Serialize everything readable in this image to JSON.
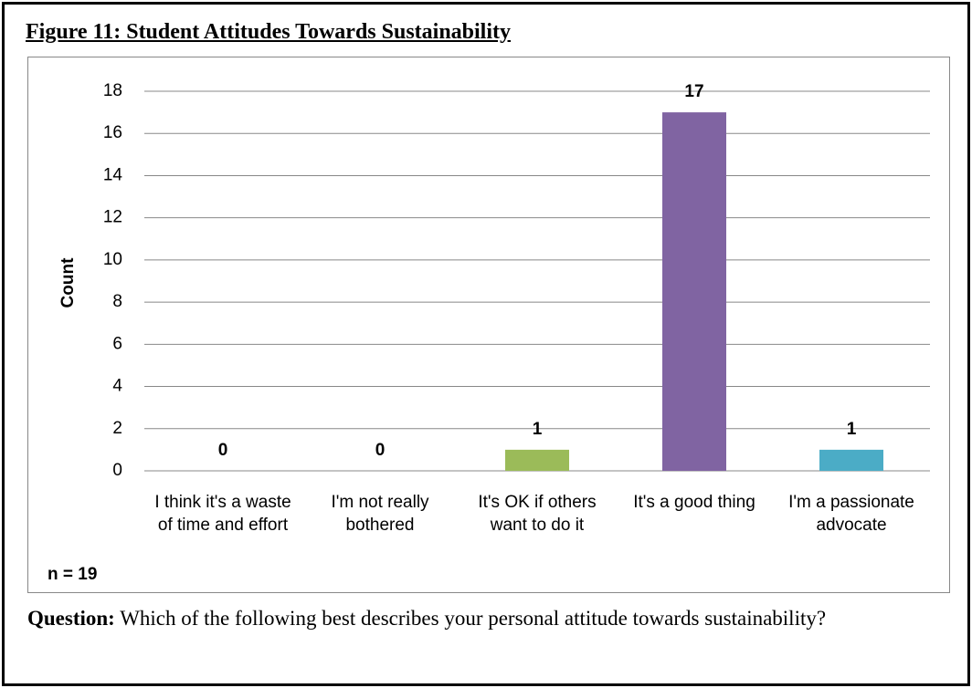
{
  "chart_data": {
    "type": "bar",
    "title": "Figure 11: Student Attitudes Towards Sustainability",
    "y_label": "Count",
    "annotation": "n = 19",
    "categories": [
      "I think it's a waste of time and effort",
      "I'm not really bothered",
      "It's OK if others want to do it",
      "It's a good thing",
      "I'm a passionate advocate"
    ],
    "values": [
      0,
      0,
      1,
      17,
      1
    ],
    "colors": [
      "#4f81bd",
      "#c0504d",
      "#9bbb59",
      "#8064a2",
      "#4bacc6"
    ],
    "ylim": [
      0,
      18
    ],
    "yticks": [
      0,
      2,
      4,
      6,
      8,
      10,
      12,
      14,
      16,
      18
    ],
    "grid": true
  },
  "question": {
    "label": "Question:",
    "text": "Which of the following best describes your personal attitude towards sustainability?"
  }
}
